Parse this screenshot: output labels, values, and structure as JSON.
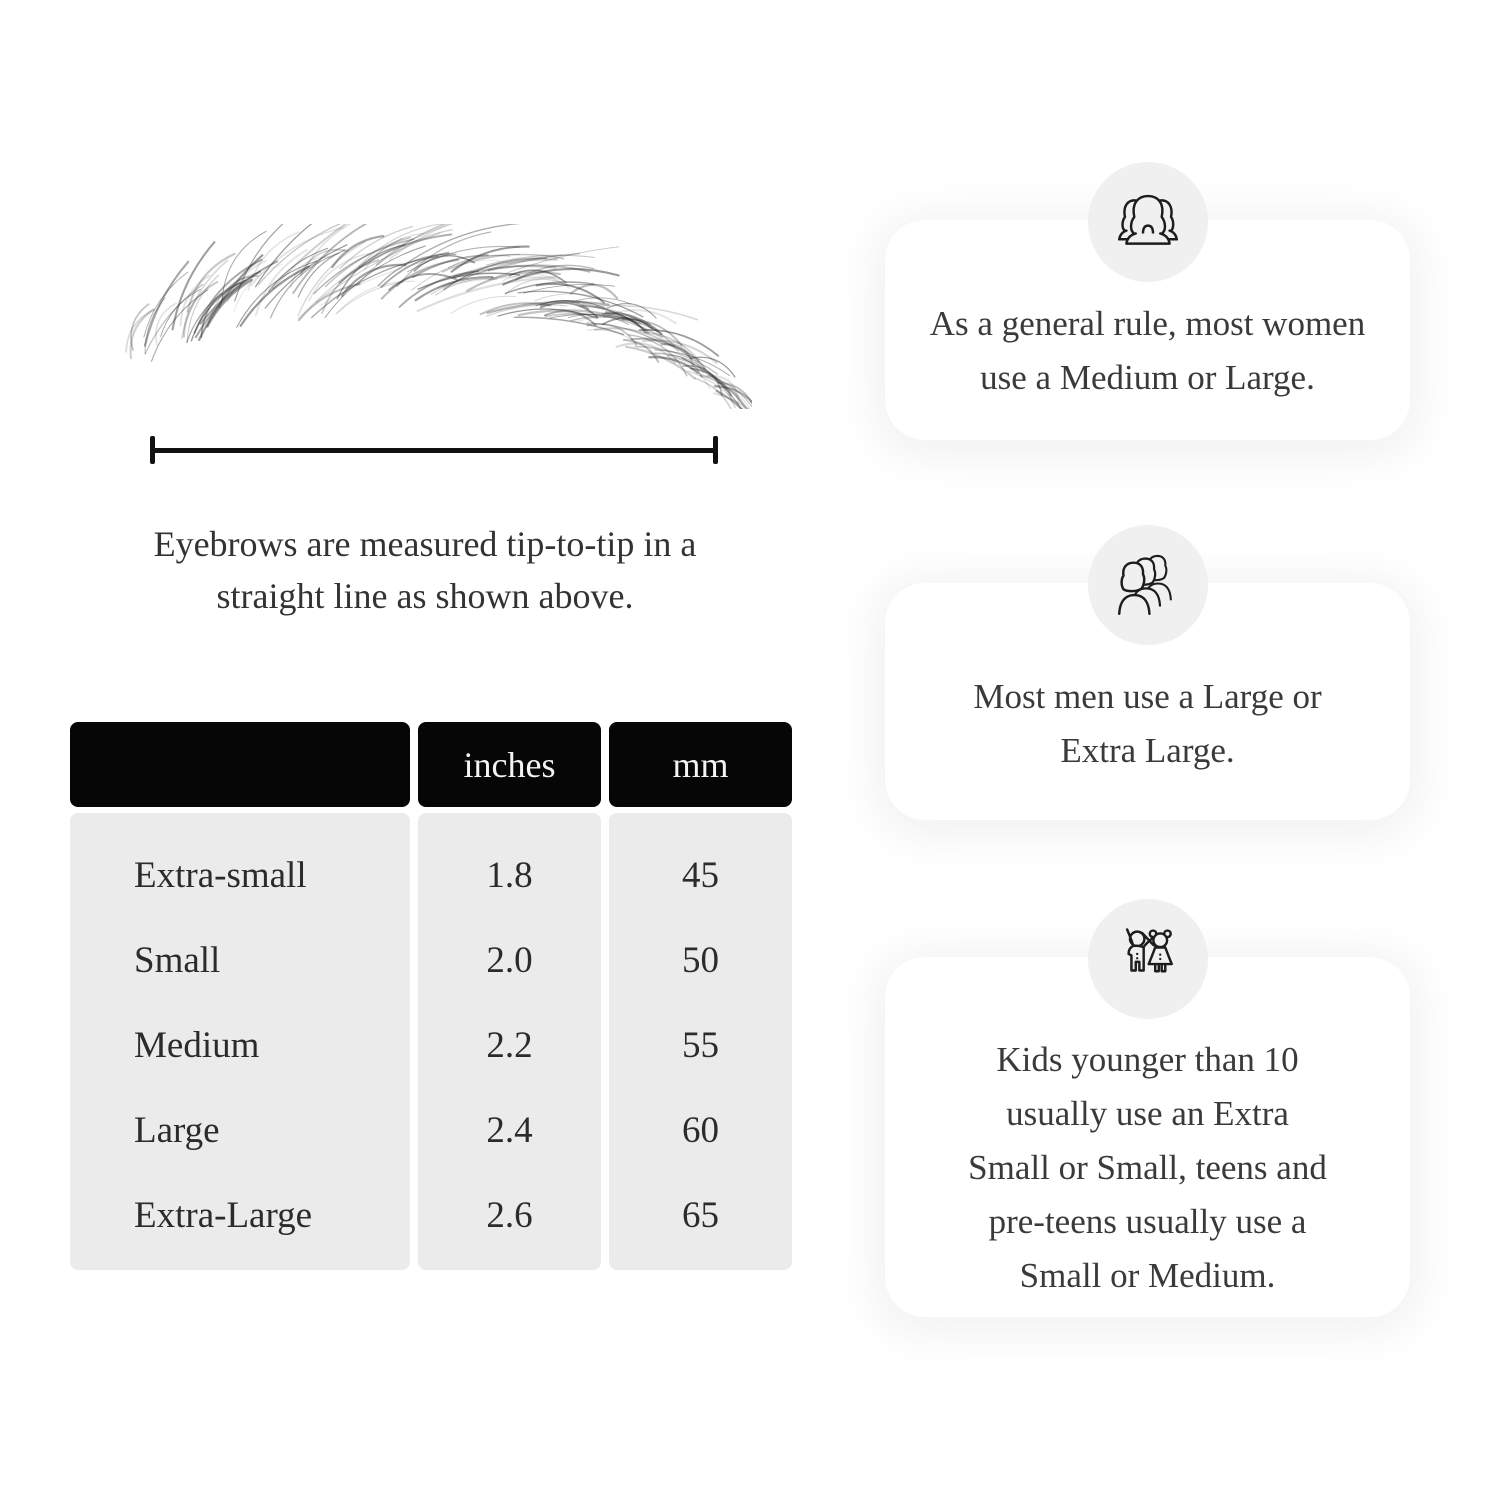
{
  "colors": {
    "background": "#ffffff",
    "table_header_bg": "#060606",
    "table_header_text": "#f4f4f4",
    "table_body_bg": "#ebebeb",
    "card_bg": "#ffffff",
    "icon_circle_bg": "#f0f0f0",
    "line_color": "#111111",
    "text_color": "#2e2e2e"
  },
  "measurement": {
    "caption_line1": "Eyebrows are measured tip-to-tip",
    "caption_line2": "in a straight line as shown above."
  },
  "size_table": {
    "columns": [
      "",
      "inches",
      "mm"
    ],
    "rows": [
      {
        "label": "Extra-small",
        "inches": "1.8",
        "mm": "45"
      },
      {
        "label": "Small",
        "inches": "2.0",
        "mm": "50"
      },
      {
        "label": "Medium",
        "inches": "2.2",
        "mm": "55"
      },
      {
        "label": "Large",
        "inches": "2.4",
        "mm": "60"
      },
      {
        "label": "Extra-Large",
        "inches": "2.6",
        "mm": "65"
      }
    ]
  },
  "tips": [
    {
      "icon": "women-group-icon",
      "lines": [
        "As a general rule, most women",
        "use a Medium or Large."
      ]
    },
    {
      "icon": "men-group-icon",
      "lines": [
        "Most men use a Large or",
        "Extra Large."
      ]
    },
    {
      "icon": "kids-icon",
      "lines": [
        "Kids younger than 10",
        "usually use an Extra",
        "Small or Small, teens and",
        "pre-teens usually use a",
        "Small or Medium."
      ]
    }
  ]
}
